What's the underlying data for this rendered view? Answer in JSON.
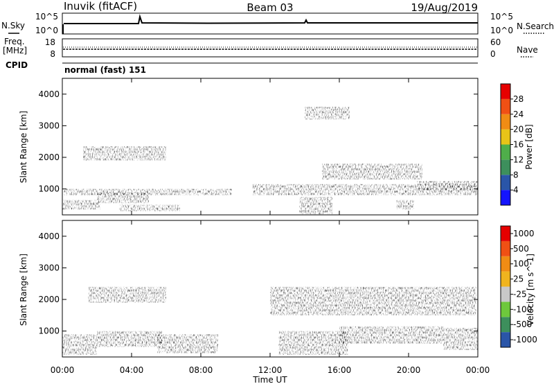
{
  "header": {
    "station": "Inuvik (fitACF)",
    "beam": "Beam 03",
    "date": "19/Aug/2019"
  },
  "nsky_panel": {
    "left_label": "N.Sky",
    "left_ticks": [
      "10^5",
      "10^0"
    ],
    "right_label": "N.Search",
    "right_ticks": [
      "10^5",
      "10^0"
    ]
  },
  "freq_panel": {
    "left_label_1": "Freq.",
    "left_label_2": "[MHz]",
    "left_ticks": [
      "18",
      "8"
    ],
    "right_label": "Nave",
    "right_ticks": [
      "60",
      "0"
    ]
  },
  "cpid_panel": {
    "label": "CPID",
    "mode": "normal (fast) 151"
  },
  "colors": {
    "power_scale": [
      "#1414ff",
      "#2a55a8",
      "#3d8f5c",
      "#4fae4a",
      "#e8c418",
      "#f08c14",
      "#f05014",
      "#e60000"
    ],
    "velocity_scale": [
      "#e60000",
      "#f05014",
      "#f08c14",
      "#f0b41e",
      "#c8c8c8",
      "#6ec83c",
      "#3d8f5c",
      "#2a55a8"
    ]
  },
  "chart_data": [
    {
      "type": "heatmap",
      "title": "",
      "xlabel": "",
      "ylabel": "Slant Range [km]",
      "xlim": [
        "00:00",
        "00:00"
      ],
      "ylim": [
        180,
        4500
      ],
      "y_ticks": [
        "1000",
        "2000",
        "3000",
        "4000"
      ],
      "colorbar": {
        "label": "Power [dB]",
        "ticks": [
          "4",
          "8",
          "12",
          "16",
          "20",
          "24",
          "28"
        ],
        "range": [
          0,
          30
        ]
      },
      "echo_regions": [
        {
          "t_start_h": 0.1,
          "t_end_h": 9.8,
          "range_km": [
            800,
            1000
          ],
          "value_db": 18
        },
        {
          "t_start_h": 0.0,
          "t_end_h": 2.2,
          "range_km": [
            350,
            650
          ],
          "value_db": 24
        },
        {
          "t_start_h": 2.0,
          "t_end_h": 5.0,
          "range_km": [
            550,
            900
          ],
          "value_db": 26
        },
        {
          "t_start_h": 3.3,
          "t_end_h": 6.8,
          "range_km": [
            300,
            500
          ],
          "value_db": 22
        },
        {
          "t_start_h": 1.2,
          "t_end_h": 6.0,
          "range_km": [
            1900,
            2350
          ],
          "value_db": 13
        },
        {
          "t_start_h": 11.0,
          "t_end_h": 24.0,
          "range_km": [
            800,
            1150
          ],
          "value_db": 17
        },
        {
          "t_start_h": 13.7,
          "t_end_h": 15.6,
          "range_km": [
            200,
            750
          ],
          "value_db": 25
        },
        {
          "t_start_h": 15.0,
          "t_end_h": 20.8,
          "range_km": [
            1300,
            1800
          ],
          "value_db": 12
        },
        {
          "t_start_h": 14.0,
          "t_end_h": 16.6,
          "range_km": [
            3200,
            3600
          ],
          "value_db": 11
        },
        {
          "t_start_h": 19.3,
          "t_end_h": 20.3,
          "range_km": [
            350,
            650
          ],
          "value_db": 26
        },
        {
          "t_start_h": 20.5,
          "t_end_h": 24.0,
          "range_km": [
            950,
            1250
          ],
          "value_db": 21
        }
      ]
    },
    {
      "type": "heatmap",
      "title": "",
      "xlabel": "Time UT",
      "ylabel": "Slant Range [km]",
      "x_ticks": [
        "00:00",
        "04:00",
        "08:00",
        "12:00",
        "16:00",
        "20:00",
        "00:00"
      ],
      "ylim": [
        180,
        4500
      ],
      "y_ticks": [
        "1000",
        "2000",
        "3000",
        "4000"
      ],
      "colorbar": {
        "label": "Velocity [m s^-1]",
        "ticks": [
          "1000",
          "500",
          "100",
          "25",
          "-25",
          "-100",
          "-500",
          "-1000"
        ],
        "range": [
          -1000,
          1000
        ]
      },
      "echo_regions": [
        {
          "t_start_h": 0.0,
          "t_end_h": 2.0,
          "range_km": [
            250,
            900
          ],
          "value_ms": -300
        },
        {
          "t_start_h": 2.0,
          "t_end_h": 5.8,
          "range_km": [
            500,
            1000
          ],
          "value_ms": 200
        },
        {
          "t_start_h": 1.5,
          "t_end_h": 6.0,
          "range_km": [
            1900,
            2400
          ],
          "value_ms": 0
        },
        {
          "t_start_h": 5.5,
          "t_end_h": 9.0,
          "range_km": [
            300,
            900
          ],
          "value_ms": -150
        },
        {
          "t_start_h": 12.5,
          "t_end_h": 16.5,
          "range_km": [
            250,
            1000
          ],
          "value_ms": -250
        },
        {
          "t_start_h": 12.0,
          "t_end_h": 23.9,
          "range_km": [
            1500,
            2400
          ],
          "value_ms": 0
        },
        {
          "t_start_h": 16.0,
          "t_end_h": 22.0,
          "range_km": [
            600,
            1150
          ],
          "value_ms": 0
        },
        {
          "t_start_h": 22.0,
          "t_end_h": 24.0,
          "range_km": [
            400,
            1100
          ],
          "value_ms": -200
        }
      ]
    }
  ]
}
